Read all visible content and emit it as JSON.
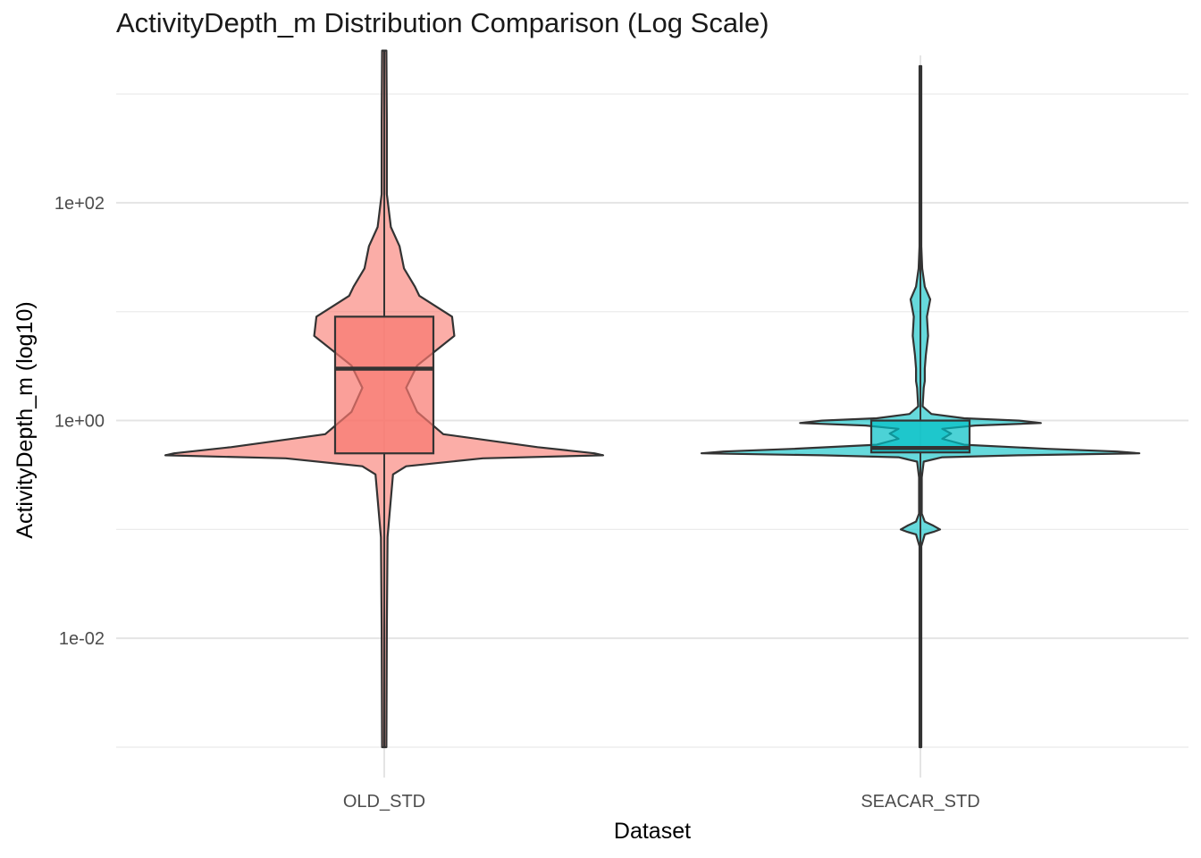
{
  "chart_data": {
    "type": "violin",
    "title": "ActivityDepth_m Distribution Comparison (Log Scale)",
    "xlabel": "Dataset",
    "ylabel": "ActivityDepth_m (log10)",
    "y_scale": "log10",
    "ylim": [
      0.001,
      3000
    ],
    "y_ticks": [
      {
        "value": 0.01,
        "label": "1e-02"
      },
      {
        "value": 1,
        "label": "1e+00"
      },
      {
        "value": 100,
        "label": "1e+02"
      }
    ],
    "y_minor_ticks": [
      0.001,
      0.1,
      10,
      1000
    ],
    "categories": [
      "OLD_STD",
      "SEACAR_STD"
    ],
    "series": [
      {
        "name": "OLD_STD",
        "color": "#F8766D",
        "box": {
          "min": 0.001,
          "q1": 0.5,
          "median": 3.0,
          "q3": 9.0,
          "max": 2500
        },
        "density_profile": [
          {
            "y": 0.001,
            "w": 0.01
          },
          {
            "y": 0.0126,
            "w": 0.012
          },
          {
            "y": 0.085,
            "w": 0.015
          },
          {
            "y": 0.32,
            "w": 0.04
          },
          {
            "y": 0.38,
            "w": 0.1
          },
          {
            "y": 0.45,
            "w": 0.45
          },
          {
            "y": 0.48,
            "w": 1.0
          },
          {
            "y": 0.5,
            "w": 0.96
          },
          {
            "y": 0.57,
            "w": 0.7
          },
          {
            "y": 0.75,
            "w": 0.27
          },
          {
            "y": 1.2,
            "w": 0.15
          },
          {
            "y": 2.0,
            "w": 0.1
          },
          {
            "y": 3.2,
            "w": 0.15
          },
          {
            "y": 6.0,
            "w": 0.32
          },
          {
            "y": 9.0,
            "w": 0.31
          },
          {
            "y": 14,
            "w": 0.16
          },
          {
            "y": 17,
            "w": 0.14
          },
          {
            "y": 25,
            "w": 0.09
          },
          {
            "y": 40,
            "w": 0.07
          },
          {
            "y": 60,
            "w": 0.03
          },
          {
            "y": 120,
            "w": 0.012
          },
          {
            "y": 550,
            "w": 0.012
          },
          {
            "y": 2500,
            "w": 0.01
          }
        ]
      },
      {
        "name": "SEACAR_STD",
        "color": "#00BFC4",
        "box": {
          "min": 0.001,
          "q1": 0.51,
          "median": 0.56,
          "q3": 1.0,
          "max": 1800
        },
        "density_profile": [
          {
            "y": 0.001,
            "w": 0.004
          },
          {
            "y": 0.07,
            "w": 0.004
          },
          {
            "y": 0.09,
            "w": 0.02
          },
          {
            "y": 0.095,
            "w": 0.06
          },
          {
            "y": 0.1,
            "w": 0.09
          },
          {
            "y": 0.108,
            "w": 0.06
          },
          {
            "y": 0.118,
            "w": 0.02
          },
          {
            "y": 0.14,
            "w": 0.006
          },
          {
            "y": 0.3,
            "w": 0.006
          },
          {
            "y": 0.42,
            "w": 0.015
          },
          {
            "y": 0.46,
            "w": 0.1
          },
          {
            "y": 0.48,
            "w": 0.45
          },
          {
            "y": 0.5,
            "w": 1.0
          },
          {
            "y": 0.52,
            "w": 0.9
          },
          {
            "y": 0.55,
            "w": 0.58
          },
          {
            "y": 0.6,
            "w": 0.2
          },
          {
            "y": 0.68,
            "w": 0.1
          },
          {
            "y": 0.76,
            "w": 0.14
          },
          {
            "y": 0.84,
            "w": 0.1
          },
          {
            "y": 0.9,
            "w": 0.25
          },
          {
            "y": 0.95,
            "w": 0.55
          },
          {
            "y": 1.0,
            "w": 0.45
          },
          {
            "y": 1.05,
            "w": 0.2
          },
          {
            "y": 1.15,
            "w": 0.05
          },
          {
            "y": 1.35,
            "w": 0.01
          },
          {
            "y": 2.0,
            "w": 0.015
          },
          {
            "y": 2.3,
            "w": 0.02
          },
          {
            "y": 3.0,
            "w": 0.02
          },
          {
            "y": 4.0,
            "w": 0.025
          },
          {
            "y": 6.0,
            "w": 0.035
          },
          {
            "y": 9.0,
            "w": 0.03
          },
          {
            "y": 13,
            "w": 0.045
          },
          {
            "y": 17,
            "w": 0.02
          },
          {
            "y": 25,
            "w": 0.008
          },
          {
            "y": 40,
            "w": 0.004
          },
          {
            "y": 1800,
            "w": 0.004
          }
        ]
      }
    ],
    "grid": true,
    "legend": "none"
  }
}
